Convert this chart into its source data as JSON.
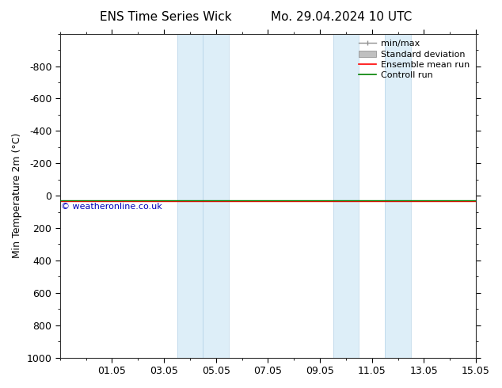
{
  "title_left": "ENS Time Series Wick",
  "title_right": "Mo. 29.04.2024 10 UTC",
  "ylabel": "Min Temperature 2m (°C)",
  "ylim_bottom": -1000,
  "ylim_top": 1000,
  "yticks": [
    -800,
    -600,
    -400,
    -200,
    0,
    200,
    400,
    600,
    800,
    1000
  ],
  "x_tick_labels": [
    "01.05",
    "03.05",
    "05.05",
    "07.05",
    "09.05",
    "11.05",
    "13.05",
    "15.05"
  ],
  "x_tick_positions": [
    2,
    4,
    6,
    8,
    10,
    12,
    14,
    16
  ],
  "xlim": [
    0,
    16
  ],
  "shaded_regions": [
    [
      4.5,
      5.5
    ],
    [
      5.5,
      6.5
    ],
    [
      10.5,
      11.5
    ],
    [
      12.5,
      13.5
    ]
  ],
  "shade_color": "#ddeef8",
  "shade_linecolor": "#b8d4e8",
  "control_run_y": 30,
  "control_run_color": "#008000",
  "ensemble_mean_color": "#ff0000",
  "std_dev_color": "#c0c0c0",
  "min_max_color": "#909090",
  "watermark_text": "© weatheronline.co.uk",
  "watermark_color": "#0000bb",
  "bg_color": "#ffffff",
  "plot_bg_color": "#ffffff",
  "title_fontsize": 11,
  "tick_fontsize": 9,
  "ylabel_fontsize": 9,
  "legend_fontsize": 8
}
